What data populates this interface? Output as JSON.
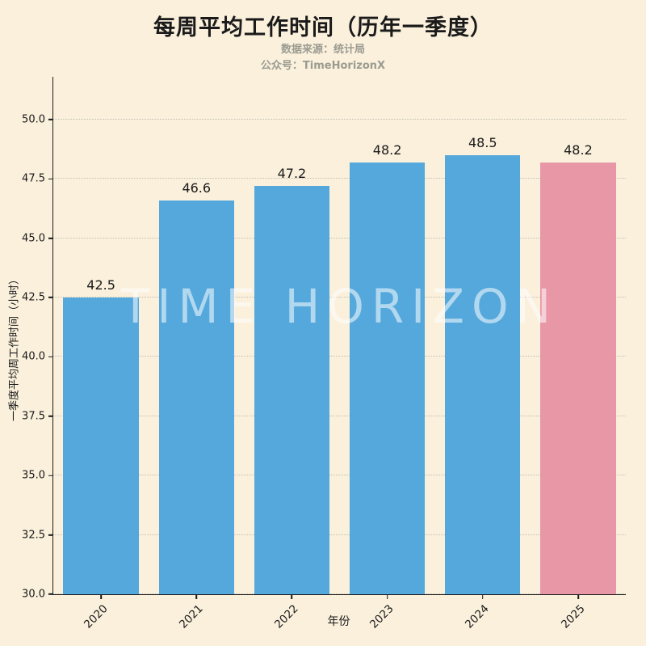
{
  "page": {
    "subtitle_line1": "数据来源：统计局",
    "subtitle_line2": "公众号：TimeHorizonX",
    "watermark": "TIME HORIZON"
  },
  "chart_data": {
    "type": "bar",
    "title": "每周平均工作时间（历年一季度）",
    "categories": [
      "2020",
      "2021",
      "2022",
      "2023",
      "2024",
      "2025"
    ],
    "values": [
      42.5,
      46.6,
      47.2,
      48.2,
      48.5,
      48.2
    ],
    "bar_colors": [
      "#54A8DC",
      "#54A8DC",
      "#54A8DC",
      "#54A8DC",
      "#54A8DC",
      "#E897A7"
    ],
    "xlabel": "年份",
    "ylabel": "一季度平均周工作时间（小时）",
    "ylim": [
      30.0,
      51.8
    ],
    "yticks": [
      30.0,
      32.5,
      35.0,
      37.5,
      40.0,
      42.5,
      45.0,
      47.5,
      50.0
    ],
    "grid": "dotted-horizontal",
    "legend": "none",
    "colors": {
      "background": "#FAF0DC",
      "bar_default": "#54A8DC",
      "bar_highlight": "#E897A7",
      "title_text": "#1A1A1A",
      "subtitle_text": "#9B9B91",
      "axis_text": "#1A1A1A",
      "watermark_text": "rgba(255,255,255,0.55)"
    }
  }
}
